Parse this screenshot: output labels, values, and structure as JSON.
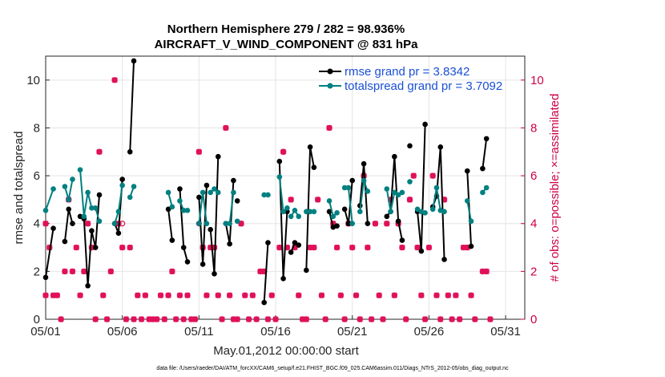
{
  "chart_data": {
    "type": "line",
    "title_line1": "Northern Hemisphere 279 / 282 = 98.936%",
    "title_line2": "AIRCRAFT_V_WIND_COMPONENT @ 831 hPa",
    "xlabel": "May.01,2012 00:00:00 start",
    "ylabel": "rmse and totalspread",
    "ylabel_right": "# of obs: o=possible; ×=assimilated",
    "footer": "data file: /Users/raeder/DAI/ATM_forcXX/CAM6_setup/f.e21.FHIST_BGC.f09_025.CAM6assim.011/Diags_NTrS_2012-05/obs_diag_output.nc",
    "xlim": [
      1,
      32.25
    ],
    "ylim": [
      0,
      11
    ],
    "ylim_right": [
      0,
      11
    ],
    "x_ticks": [
      1,
      6,
      11,
      16,
      21,
      26,
      31
    ],
    "x_tick_labels": [
      "05/01",
      "05/06",
      "05/11",
      "05/16",
      "05/21",
      "05/26",
      "05/31"
    ],
    "y_ticks": [
      0,
      2,
      4,
      6,
      8,
      10
    ],
    "y_tick_labels": [
      "0",
      "2",
      "4",
      "6",
      "8",
      "10"
    ],
    "y_right_ticks": [
      0,
      2,
      4,
      6,
      8,
      10
    ],
    "y_right_tick_labels": [
      "0",
      "2",
      "4",
      "6",
      "8",
      "10"
    ],
    "grid": true,
    "legend_position": "top-right",
    "colors": {
      "rmse": "#000000",
      "spread": "#008080",
      "obs": "#e0105a",
      "right_axis": "#cc0044",
      "legend_text": "#1a4fd6"
    },
    "series": [
      {
        "name": "rmse grand pr = 3.8342",
        "points": [
          [
            1.0,
            1.75
          ],
          [
            1.5,
            3.8
          ],
          null,
          [
            2.25,
            3.25
          ],
          [
            2.5,
            4.6
          ],
          [
            2.75,
            4.0
          ],
          null,
          [
            3.25,
            4.3
          ],
          [
            3.5,
            4.2
          ],
          [
            3.75,
            1.4
          ],
          [
            4.0,
            3.7
          ],
          [
            4.25,
            3.0
          ],
          [
            4.5,
            5.2
          ],
          null,
          [
            5.5,
            4.0
          ],
          [
            5.75,
            3.6
          ],
          [
            6.0,
            5.85
          ],
          null,
          [
            6.5,
            7.0
          ],
          [
            6.75,
            10.8
          ],
          null,
          [
            9.0,
            4.6
          ],
          [
            9.25,
            3.3
          ],
          null,
          [
            9.75,
            5.45
          ],
          [
            10.0,
            3.0
          ],
          [
            10.25,
            2.4
          ],
          null,
          [
            11.0,
            5.1
          ],
          [
            11.25,
            2.3
          ],
          [
            11.5,
            5.6
          ],
          null,
          [
            11.75,
            3.75
          ],
          [
            12.0,
            1.9
          ],
          [
            12.25,
            6.8
          ],
          null,
          [
            12.75,
            4.0
          ],
          [
            13.0,
            3.15
          ],
          [
            13.25,
            5.8
          ],
          null,
          [
            13.5,
            4.95
          ],
          null,
          [
            15.25,
            0.7
          ],
          [
            15.5,
            3.2
          ],
          null,
          [
            16.25,
            6.6
          ],
          [
            16.5,
            1.7
          ],
          [
            16.75,
            4.5
          ],
          null,
          [
            17.0,
            2.8
          ],
          [
            17.25,
            3.2
          ],
          [
            17.5,
            3.1
          ],
          null,
          [
            18.0,
            2.05
          ],
          [
            18.25,
            7.2
          ],
          [
            18.5,
            6.35
          ],
          null,
          [
            19.5,
            4.5
          ],
          [
            19.75,
            3.85
          ],
          [
            20.0,
            3.9
          ],
          null,
          [
            20.5,
            4.6
          ],
          [
            20.75,
            4.0
          ],
          [
            21.0,
            5.8
          ],
          null,
          [
            21.5,
            4.75
          ],
          [
            21.75,
            6.5
          ],
          [
            22.0,
            4.0
          ],
          null,
          [
            23.25,
            4.3
          ],
          [
            23.5,
            4.5
          ],
          [
            23.75,
            6.8
          ],
          [
            24.0,
            4.1
          ],
          [
            24.25,
            3.3
          ],
          null,
          [
            24.75,
            7.25
          ],
          null,
          [
            25.25,
            4.5
          ],
          [
            25.5,
            2.85
          ],
          [
            25.75,
            8.15
          ],
          null,
          [
            26.25,
            4.7
          ],
          [
            26.5,
            5.15
          ],
          [
            26.75,
            7.2
          ],
          [
            27.0,
            2.5
          ],
          null,
          [
            28.5,
            6.2
          ],
          [
            28.75,
            3.05
          ],
          null,
          [
            29.5,
            6.3
          ],
          [
            29.75,
            7.55
          ]
        ]
      },
      {
        "name": "totalspread grand pr = 3.7092",
        "points": [
          [
            1.0,
            4.55
          ],
          [
            1.5,
            5.45
          ],
          null,
          [
            2.25,
            5.55
          ],
          [
            2.5,
            5.0
          ],
          [
            2.75,
            5.85
          ],
          null,
          [
            3.25,
            6.25
          ],
          [
            3.5,
            4.3
          ],
          [
            3.75,
            5.3
          ],
          [
            4.0,
            4.65
          ],
          [
            4.25,
            4.65
          ],
          [
            4.5,
            4.1
          ],
          null,
          [
            5.5,
            4.0
          ],
          [
            5.75,
            4.5
          ],
          [
            6.0,
            5.6
          ],
          null,
          [
            6.5,
            5.1
          ],
          [
            6.75,
            5.55
          ],
          null,
          [
            9.0,
            5.3
          ],
          [
            9.25,
            4.7
          ],
          null,
          [
            9.75,
            4.95
          ],
          [
            10.0,
            4.55
          ],
          [
            10.25,
            4.55
          ],
          null,
          [
            11.0,
            4.0
          ],
          [
            11.25,
            5.3
          ],
          [
            11.5,
            4.0
          ],
          null,
          [
            11.75,
            5.3
          ],
          [
            12.0,
            5.45
          ],
          [
            12.25,
            5.3
          ],
          null,
          [
            12.75,
            4.0
          ],
          [
            13.0,
            4.0
          ],
          [
            13.25,
            5.3
          ],
          null,
          [
            13.5,
            4.1
          ],
          null,
          [
            15.25,
            5.2
          ],
          [
            15.5,
            5.2
          ],
          null,
          [
            16.25,
            5.95
          ],
          [
            16.5,
            4.5
          ],
          [
            16.75,
            4.65
          ],
          null,
          [
            17.0,
            4.3
          ],
          [
            17.25,
            4.55
          ],
          [
            17.5,
            4.3
          ],
          null,
          [
            18.0,
            4.5
          ],
          [
            18.25,
            4.5
          ],
          [
            18.5,
            4.5
          ],
          null,
          [
            19.5,
            4.95
          ],
          [
            19.75,
            4.3
          ],
          [
            20.0,
            4.45
          ],
          null,
          [
            20.5,
            5.5
          ],
          [
            20.75,
            5.5
          ],
          [
            21.0,
            4.0
          ],
          null,
          [
            21.5,
            4.5
          ],
          [
            21.75,
            5.8
          ],
          [
            22.0,
            5.35
          ],
          null,
          [
            23.25,
            5.45
          ],
          [
            23.5,
            4.5
          ],
          [
            23.75,
            5.3
          ],
          [
            24.0,
            5.2
          ],
          [
            24.25,
            5.3
          ],
          null,
          [
            24.75,
            5.75
          ],
          null,
          [
            25.25,
            4.6
          ],
          [
            25.5,
            4.5
          ],
          [
            25.75,
            4.45
          ],
          null,
          [
            26.25,
            4.6
          ],
          [
            26.5,
            5.5
          ],
          [
            26.75,
            4.55
          ],
          [
            27.0,
            4.5
          ],
          null,
          [
            28.5,
            4.95
          ],
          [
            28.75,
            4.1
          ],
          null,
          [
            29.5,
            5.3
          ],
          [
            29.75,
            5.5
          ]
        ]
      }
    ],
    "obs_assimilated": [
      [
        1.0,
        4
      ],
      [
        1.0,
        1
      ],
      [
        1.25,
        3
      ],
      [
        1.5,
        1
      ],
      [
        1.75,
        1
      ],
      [
        2.0,
        0
      ],
      [
        2.25,
        2
      ],
      [
        2.5,
        5
      ],
      [
        2.75,
        2
      ],
      [
        3.0,
        3
      ],
      [
        3.25,
        1
      ],
      [
        3.5,
        2
      ],
      [
        3.75,
        4
      ],
      [
        4.0,
        3
      ],
      [
        4.25,
        0
      ],
      [
        4.5,
        7
      ],
      [
        4.75,
        1
      ],
      [
        5.0,
        0
      ],
      [
        5.25,
        2
      ],
      [
        5.5,
        10
      ],
      [
        5.75,
        4
      ],
      [
        6.0,
        3
      ],
      [
        6.25,
        0
      ],
      [
        6.5,
        3
      ],
      [
        6.75,
        0
      ],
      [
        7.0,
        1
      ],
      [
        7.25,
        0
      ],
      [
        7.5,
        1
      ],
      [
        7.75,
        0
      ],
      [
        8.0,
        0
      ],
      [
        8.25,
        0
      ],
      [
        8.5,
        1
      ],
      [
        8.75,
        0
      ],
      [
        9.0,
        1
      ],
      [
        9.25,
        2
      ],
      [
        9.5,
        0
      ],
      [
        9.75,
        1
      ],
      [
        10.0,
        0
      ],
      [
        10.25,
        1
      ],
      [
        10.5,
        0
      ],
      [
        10.75,
        0
      ],
      [
        11.0,
        7
      ],
      [
        11.25,
        3
      ],
      [
        11.5,
        1
      ],
      [
        11.75,
        3
      ],
      [
        12.0,
        3
      ],
      [
        12.25,
        1
      ],
      [
        12.5,
        0
      ],
      [
        12.75,
        8
      ],
      [
        13.0,
        1
      ],
      [
        13.25,
        0
      ],
      [
        13.5,
        0
      ],
      [
        13.75,
        4
      ],
      [
        14.0,
        1
      ],
      [
        14.25,
        0
      ],
      [
        14.5,
        1
      ],
      [
        14.75,
        0
      ],
      [
        15.0,
        2
      ],
      [
        15.25,
        2
      ],
      [
        15.5,
        0
      ],
      [
        15.75,
        1
      ],
      [
        16.0,
        0
      ],
      [
        16.25,
        3
      ],
      [
        16.5,
        7
      ],
      [
        16.75,
        3
      ],
      [
        17.0,
        5
      ],
      [
        17.25,
        3
      ],
      [
        17.5,
        1
      ],
      [
        17.75,
        0
      ],
      [
        18.0,
        0
      ],
      [
        18.25,
        3
      ],
      [
        18.5,
        3
      ],
      [
        18.75,
        5
      ],
      [
        19.0,
        1
      ],
      [
        19.25,
        0
      ],
      [
        19.5,
        8
      ],
      [
        19.75,
        4
      ],
      [
        20.0,
        3
      ],
      [
        20.25,
        1
      ],
      [
        20.5,
        0
      ],
      [
        20.75,
        4
      ],
      [
        21.0,
        3
      ],
      [
        21.25,
        1
      ],
      [
        21.5,
        0
      ],
      [
        21.75,
        6
      ],
      [
        22.0,
        3
      ],
      [
        22.25,
        0
      ],
      [
        22.5,
        4
      ],
      [
        22.75,
        1
      ],
      [
        23.0,
        0
      ],
      [
        23.25,
        4
      ],
      [
        23.5,
        5
      ],
      [
        23.75,
        1
      ],
      [
        24.0,
        4
      ],
      [
        24.25,
        3
      ],
      [
        24.5,
        0
      ],
      [
        24.75,
        5
      ],
      [
        25.0,
        6
      ],
      [
        25.25,
        3
      ],
      [
        25.5,
        1
      ],
      [
        25.75,
        0
      ],
      [
        26.0,
        3
      ],
      [
        26.25,
        6
      ],
      [
        26.5,
        1
      ],
      [
        26.75,
        0
      ],
      [
        27.0,
        5
      ],
      [
        27.25,
        1
      ],
      [
        27.5,
        0
      ],
      [
        27.75,
        1
      ],
      [
        28.0,
        0
      ],
      [
        28.25,
        3
      ],
      [
        28.5,
        3
      ],
      [
        28.75,
        1
      ],
      [
        29.0,
        0
      ],
      [
        29.5,
        2
      ],
      [
        29.75,
        2
      ],
      [
        30.0,
        0
      ]
    ],
    "obs_possible": [
      [
        2.5,
        5
      ],
      [
        6.0,
        4
      ],
      [
        11.0,
        4
      ],
      [
        13.75,
        4
      ],
      [
        16.5,
        7
      ],
      [
        19.5,
        8
      ],
      [
        21.75,
        6
      ],
      [
        24.75,
        5
      ],
      [
        27.0,
        5
      ],
      [
        28.5,
        3
      ]
    ]
  }
}
